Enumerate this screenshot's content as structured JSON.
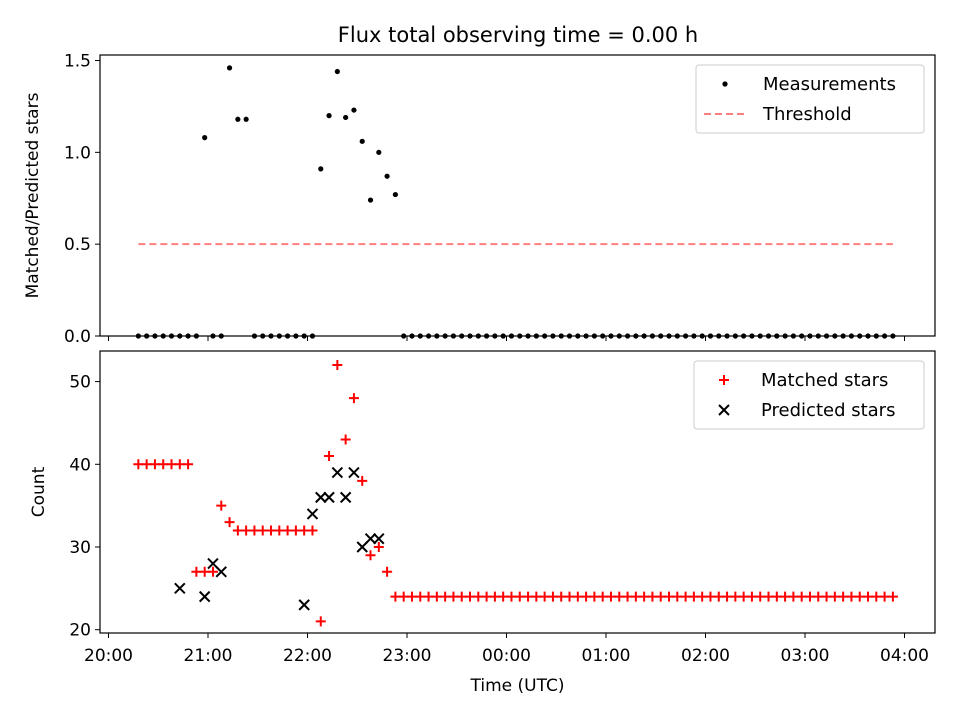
{
  "figure_title": "Flux total observing time = 0.00 h",
  "colors": {
    "measurement": "#000000",
    "threshold": "#ff7f7f",
    "matched": "#ff0000",
    "predicted": "#000000",
    "axes": "#000000",
    "background": "#ffffff"
  },
  "chart_data": [
    {
      "type": "scatter",
      "title": "Flux total observing time = 0.00 h",
      "xlabel": "",
      "ylabel": "Matched/Predicted stars",
      "xlim": [
        "20:00",
        "04:00"
      ],
      "xticks": [
        "20:00",
        "21:00",
        "22:00",
        "23:00",
        "00:00",
        "01:00",
        "02:00",
        "03:00",
        "04:00"
      ],
      "ylim": [
        0,
        1.53
      ],
      "yticks": [
        "0.0",
        "0.5",
        "1.0",
        "1.5"
      ],
      "grid": false,
      "legend": {
        "placement": "upper-right",
        "entries": [
          "Measurements",
          "Threshold"
        ]
      },
      "series": [
        {
          "name": "Measurements",
          "marker": "dot",
          "x": [
            "20:18",
            "20:23",
            "20:28",
            "20:33",
            "20:38",
            "20:43",
            "20:48",
            "20:53",
            "20:58",
            "21:03",
            "21:08",
            "21:13",
            "21:18",
            "21:23",
            "21:28",
            "21:33",
            "21:38",
            "21:43",
            "21:48",
            "21:53",
            "21:58",
            "22:03",
            "22:08",
            "22:13",
            "22:18",
            "22:23",
            "22:28",
            "22:33",
            "22:38",
            "22:43",
            "22:48",
            "22:53",
            "22:58",
            "23:03",
            "23:08",
            "23:13",
            "23:18",
            "23:23",
            "23:28",
            "23:33",
            "23:38",
            "23:43",
            "23:48",
            "23:53",
            "23:58",
            "00:03",
            "00:08",
            "00:13",
            "00:18",
            "00:23",
            "00:28",
            "00:33",
            "00:38",
            "00:43",
            "00:48",
            "00:53",
            "00:58",
            "01:03",
            "01:08",
            "01:13",
            "01:18",
            "01:23",
            "01:28",
            "01:33",
            "01:38",
            "01:43",
            "01:48",
            "01:53",
            "01:58",
            "02:03",
            "02:08",
            "02:13",
            "02:18",
            "02:23",
            "02:28",
            "02:33",
            "02:38",
            "02:43",
            "02:48",
            "02:53",
            "02:58",
            "03:03",
            "03:08",
            "03:13",
            "03:18",
            "03:23",
            "03:28",
            "03:33",
            "03:38",
            "03:43",
            "03:48",
            "03:53"
          ],
          "y": [
            0,
            0,
            0,
            0,
            0,
            0,
            0,
            0,
            1.08,
            0,
            0,
            1.46,
            1.18,
            1.18,
            0,
            0,
            0,
            0,
            0,
            0,
            0,
            0,
            0.91,
            1.2,
            1.44,
            1.19,
            1.23,
            1.06,
            0.74,
            1.0,
            0.87,
            0.77,
            0,
            0,
            0,
            0,
            0,
            0,
            0,
            0,
            0,
            0,
            0,
            0,
            0,
            0,
            0,
            0,
            0,
            0,
            0,
            0,
            0,
            0,
            0,
            0,
            0,
            0,
            0,
            0,
            0,
            0,
            0,
            0,
            0,
            0,
            0,
            0,
            0,
            0,
            0,
            0,
            0,
            0,
            0,
            0,
            0,
            0,
            0,
            0,
            0,
            0,
            0,
            0,
            0,
            0,
            0,
            0,
            0,
            0,
            0,
            0
          ]
        },
        {
          "name": "Threshold",
          "style": "dashed-line",
          "x": [
            "20:18",
            "03:53"
          ],
          "y": [
            0.5,
            0.5
          ]
        }
      ]
    },
    {
      "type": "scatter",
      "title": "",
      "xlabel": "Time (UTC)",
      "ylabel": "Count",
      "xlim": [
        "20:00",
        "04:00"
      ],
      "xticks": [
        "20:00",
        "21:00",
        "22:00",
        "23:00",
        "00:00",
        "01:00",
        "02:00",
        "03:00",
        "04:00"
      ],
      "ylim": [
        19.6,
        53.7
      ],
      "yticks": [
        "20",
        "30",
        "40",
        "50"
      ],
      "grid": false,
      "legend": {
        "placement": "upper-right",
        "entries": [
          "Matched stars",
          "Predicted stars"
        ]
      },
      "series": [
        {
          "name": "Matched stars",
          "marker": "plus",
          "x": [
            "20:18",
            "20:23",
            "20:28",
            "20:33",
            "20:38",
            "20:43",
            "20:48",
            "20:53",
            "20:58",
            "21:03",
            "21:08",
            "21:13",
            "21:18",
            "21:23",
            "21:28",
            "21:33",
            "21:38",
            "21:43",
            "21:48",
            "21:53",
            "21:58",
            "22:03",
            "22:08",
            "22:13",
            "22:18",
            "22:23",
            "22:28",
            "22:33",
            "22:38",
            "22:43",
            "22:48",
            "22:53",
            "22:58",
            "23:03",
            "23:08",
            "23:13",
            "23:18",
            "23:23",
            "23:28",
            "23:33",
            "23:38",
            "23:43",
            "23:48",
            "23:53",
            "23:58",
            "00:03",
            "00:08",
            "00:13",
            "00:18",
            "00:23",
            "00:28",
            "00:33",
            "00:38",
            "00:43",
            "00:48",
            "00:53",
            "00:58",
            "01:03",
            "01:08",
            "01:13",
            "01:18",
            "01:23",
            "01:28",
            "01:33",
            "01:38",
            "01:43",
            "01:48",
            "01:53",
            "01:58",
            "02:03",
            "02:08",
            "02:13",
            "02:18",
            "02:23",
            "02:28",
            "02:33",
            "02:38",
            "02:43",
            "02:48",
            "02:53",
            "02:58",
            "03:03",
            "03:08",
            "03:13",
            "03:18",
            "03:23",
            "03:28",
            "03:33",
            "03:38",
            "03:43",
            "03:48",
            "03:53"
          ],
          "y": [
            40,
            40,
            40,
            40,
            40,
            40,
            40,
            27,
            27,
            27,
            35,
            33,
            32,
            32,
            32,
            32,
            32,
            32,
            32,
            32,
            32,
            32,
            21,
            41,
            52,
            43,
            48,
            38,
            29,
            30,
            27,
            24,
            24,
            24,
            24,
            24,
            24,
            24,
            24,
            24,
            24,
            24,
            24,
            24,
            24,
            24,
            24,
            24,
            24,
            24,
            24,
            24,
            24,
            24,
            24,
            24,
            24,
            24,
            24,
            24,
            24,
            24,
            24,
            24,
            24,
            24,
            24,
            24,
            24,
            24,
            24,
            24,
            24,
            24,
            24,
            24,
            24,
            24,
            24,
            24,
            24,
            24,
            24,
            24,
            24,
            24,
            24,
            24,
            24,
            24,
            24,
            24
          ]
        },
        {
          "name": "Predicted stars",
          "marker": "x",
          "x": [
            "20:43",
            "20:58",
            "21:03",
            "21:08",
            "21:58",
            "22:03",
            "22:08",
            "22:13",
            "22:18",
            "22:23",
            "22:28",
            "22:33",
            "22:38",
            "22:43"
          ],
          "y": [
            25,
            24,
            28,
            27,
            23,
            34,
            36,
            36,
            39,
            36,
            39,
            30,
            31,
            31
          ]
        }
      ]
    }
  ]
}
